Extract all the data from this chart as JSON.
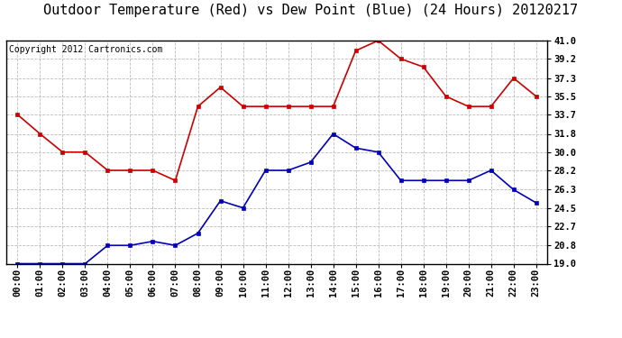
{
  "title": "Outdoor Temperature (Red) vs Dew Point (Blue) (24 Hours) 20120217",
  "copyright_text": "Copyright 2012 Cartronics.com",
  "x_labels": [
    "00:00",
    "01:00",
    "02:00",
    "03:00",
    "04:00",
    "05:00",
    "06:00",
    "07:00",
    "08:00",
    "09:00",
    "10:00",
    "11:00",
    "12:00",
    "13:00",
    "14:00",
    "15:00",
    "16:00",
    "17:00",
    "18:00",
    "19:00",
    "20:00",
    "21:00",
    "22:00",
    "23:00"
  ],
  "temp_red": [
    33.7,
    31.8,
    30.0,
    30.0,
    28.2,
    28.2,
    28.2,
    27.2,
    34.5,
    36.4,
    34.5,
    34.5,
    34.5,
    34.5,
    34.5,
    40.0,
    41.0,
    39.2,
    38.4,
    35.5,
    34.5,
    34.5,
    37.3,
    35.5
  ],
  "dew_blue": [
    19.0,
    19.0,
    19.0,
    19.0,
    20.8,
    20.8,
    21.2,
    20.8,
    22.0,
    25.2,
    24.5,
    28.2,
    28.2,
    29.0,
    31.8,
    30.4,
    30.0,
    27.2,
    27.2,
    27.2,
    27.2,
    28.2,
    26.3,
    25.0
  ],
  "ylim_min": 19.0,
  "ylim_max": 41.0,
  "yticks": [
    19.0,
    20.8,
    22.7,
    24.5,
    26.3,
    28.2,
    30.0,
    31.8,
    33.7,
    35.5,
    37.3,
    39.2,
    41.0
  ],
  "red_color": "#cc0000",
  "blue_color": "#0000bb",
  "bg_color": "#ffffff",
  "plot_bg_color": "#ffffff",
  "grid_color": "#bbbbbb",
  "title_fontsize": 11,
  "copyright_fontsize": 7,
  "tick_fontsize": 7.5,
  "ytick_fontsize": 7.5
}
